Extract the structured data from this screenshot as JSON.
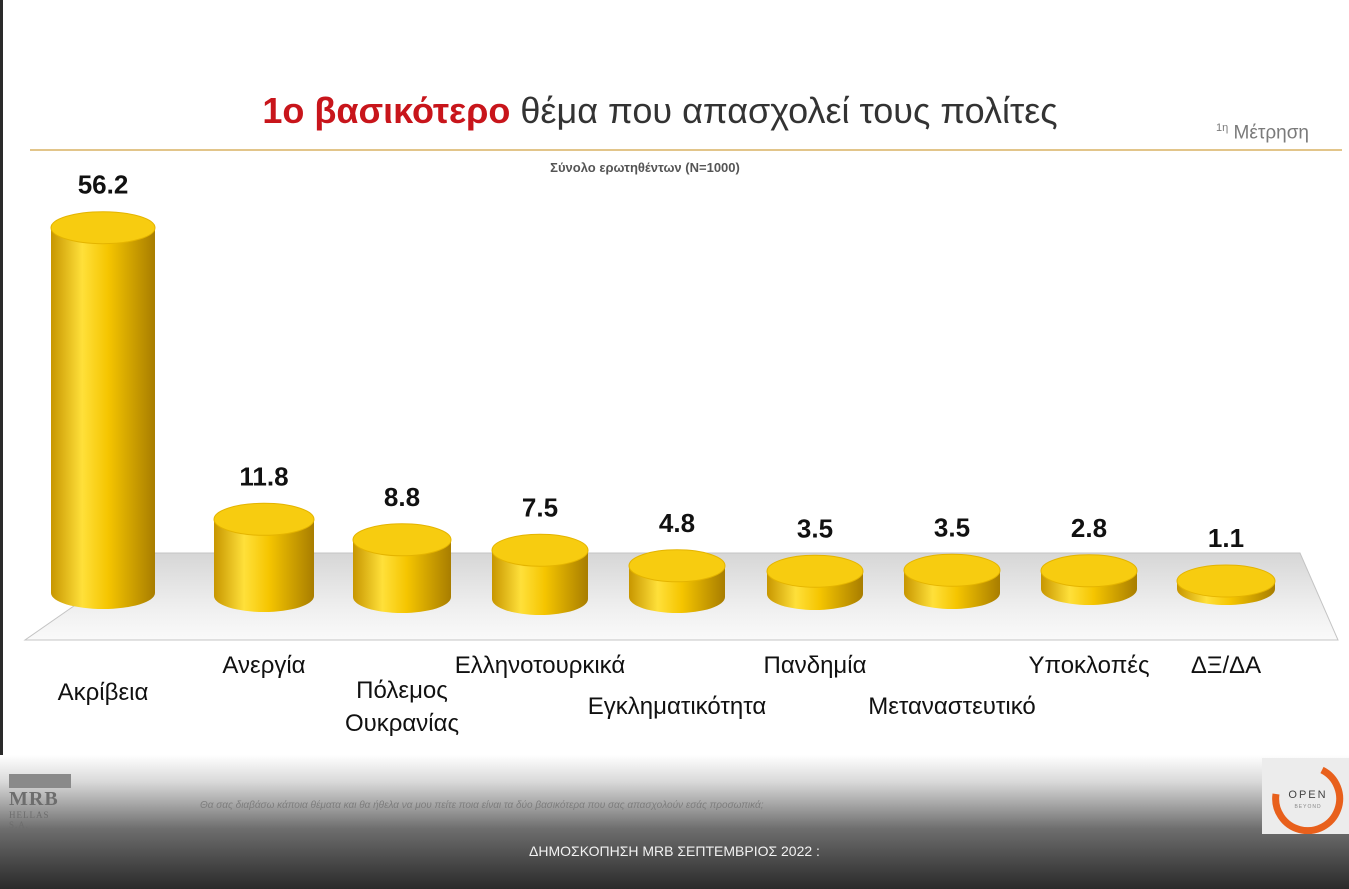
{
  "title_highlight": "1ο βασικότερο",
  "title_rest": " θέμα που απασχολεί τους πολίτες",
  "measurement_sup": "1η",
  "measurement_label": " Μέτρηση",
  "subtitle": "Σύνολο ερωτηθέντων (Ν=1000)",
  "question": "Θα σας διαβάσω κάποια θέματα και θα ήθελα να μου πείτε ποια είναι τα δύο βασικότερα που σας απασχολούν  εσάς προσωπικά;",
  "footer_text": "ΔΗΜΟΣΚΟΠΗΣΗ MRB ΣΕΠΤΕΜΒΡΙΟΣ 2022 :",
  "logos": {
    "mrb_name": "MRB",
    "mrb_sub": "HELLAS S.A.",
    "open_name": "OPEN",
    "open_sub": "BEYOND",
    "open_color": "#e8601c"
  },
  "colors": {
    "bar_light": "#ffe44d",
    "bar_mid": "#f2c300",
    "bar_dark": "#b38600",
    "title_red": "#c8151b"
  },
  "chart_data": {
    "type": "bar",
    "categories": [
      "Ακρίβεια",
      "Ανεργία",
      "Πόλεμος Ουκρανίας",
      "Ελληνοτουρκικά",
      "Εγκληματικότητα",
      "Πανδημία",
      "Μεταναστευτικό",
      "Υποκλοπές",
      "ΔΞ/ΔΑ"
    ],
    "category_lines": [
      [
        "Ακρίβεια"
      ],
      [
        "Ανεργία"
      ],
      [
        "Πόλεμος",
        "Ουκρανίας"
      ],
      [
        "Ελληνοτουρκικά"
      ],
      [
        "Εγκληματικότητα"
      ],
      [
        "Πανδημία"
      ],
      [
        "Μεταναστευτικό"
      ],
      [
        "Υποκλοπές"
      ],
      [
        "ΔΞ/ΔΑ"
      ]
    ],
    "values": [
      56.2,
      11.8,
      8.8,
      7.5,
      4.8,
      3.5,
      3.5,
      2.8,
      1.1
    ],
    "value_labels": [
      "56.2",
      "11.8",
      "8.8",
      "7.5",
      "4.8",
      "3.5",
      "3.5",
      "2.8",
      "1.1"
    ],
    "style": "3d-cylinder",
    "xlabel": "",
    "ylabel": "",
    "ylim": [
      0,
      60
    ]
  }
}
